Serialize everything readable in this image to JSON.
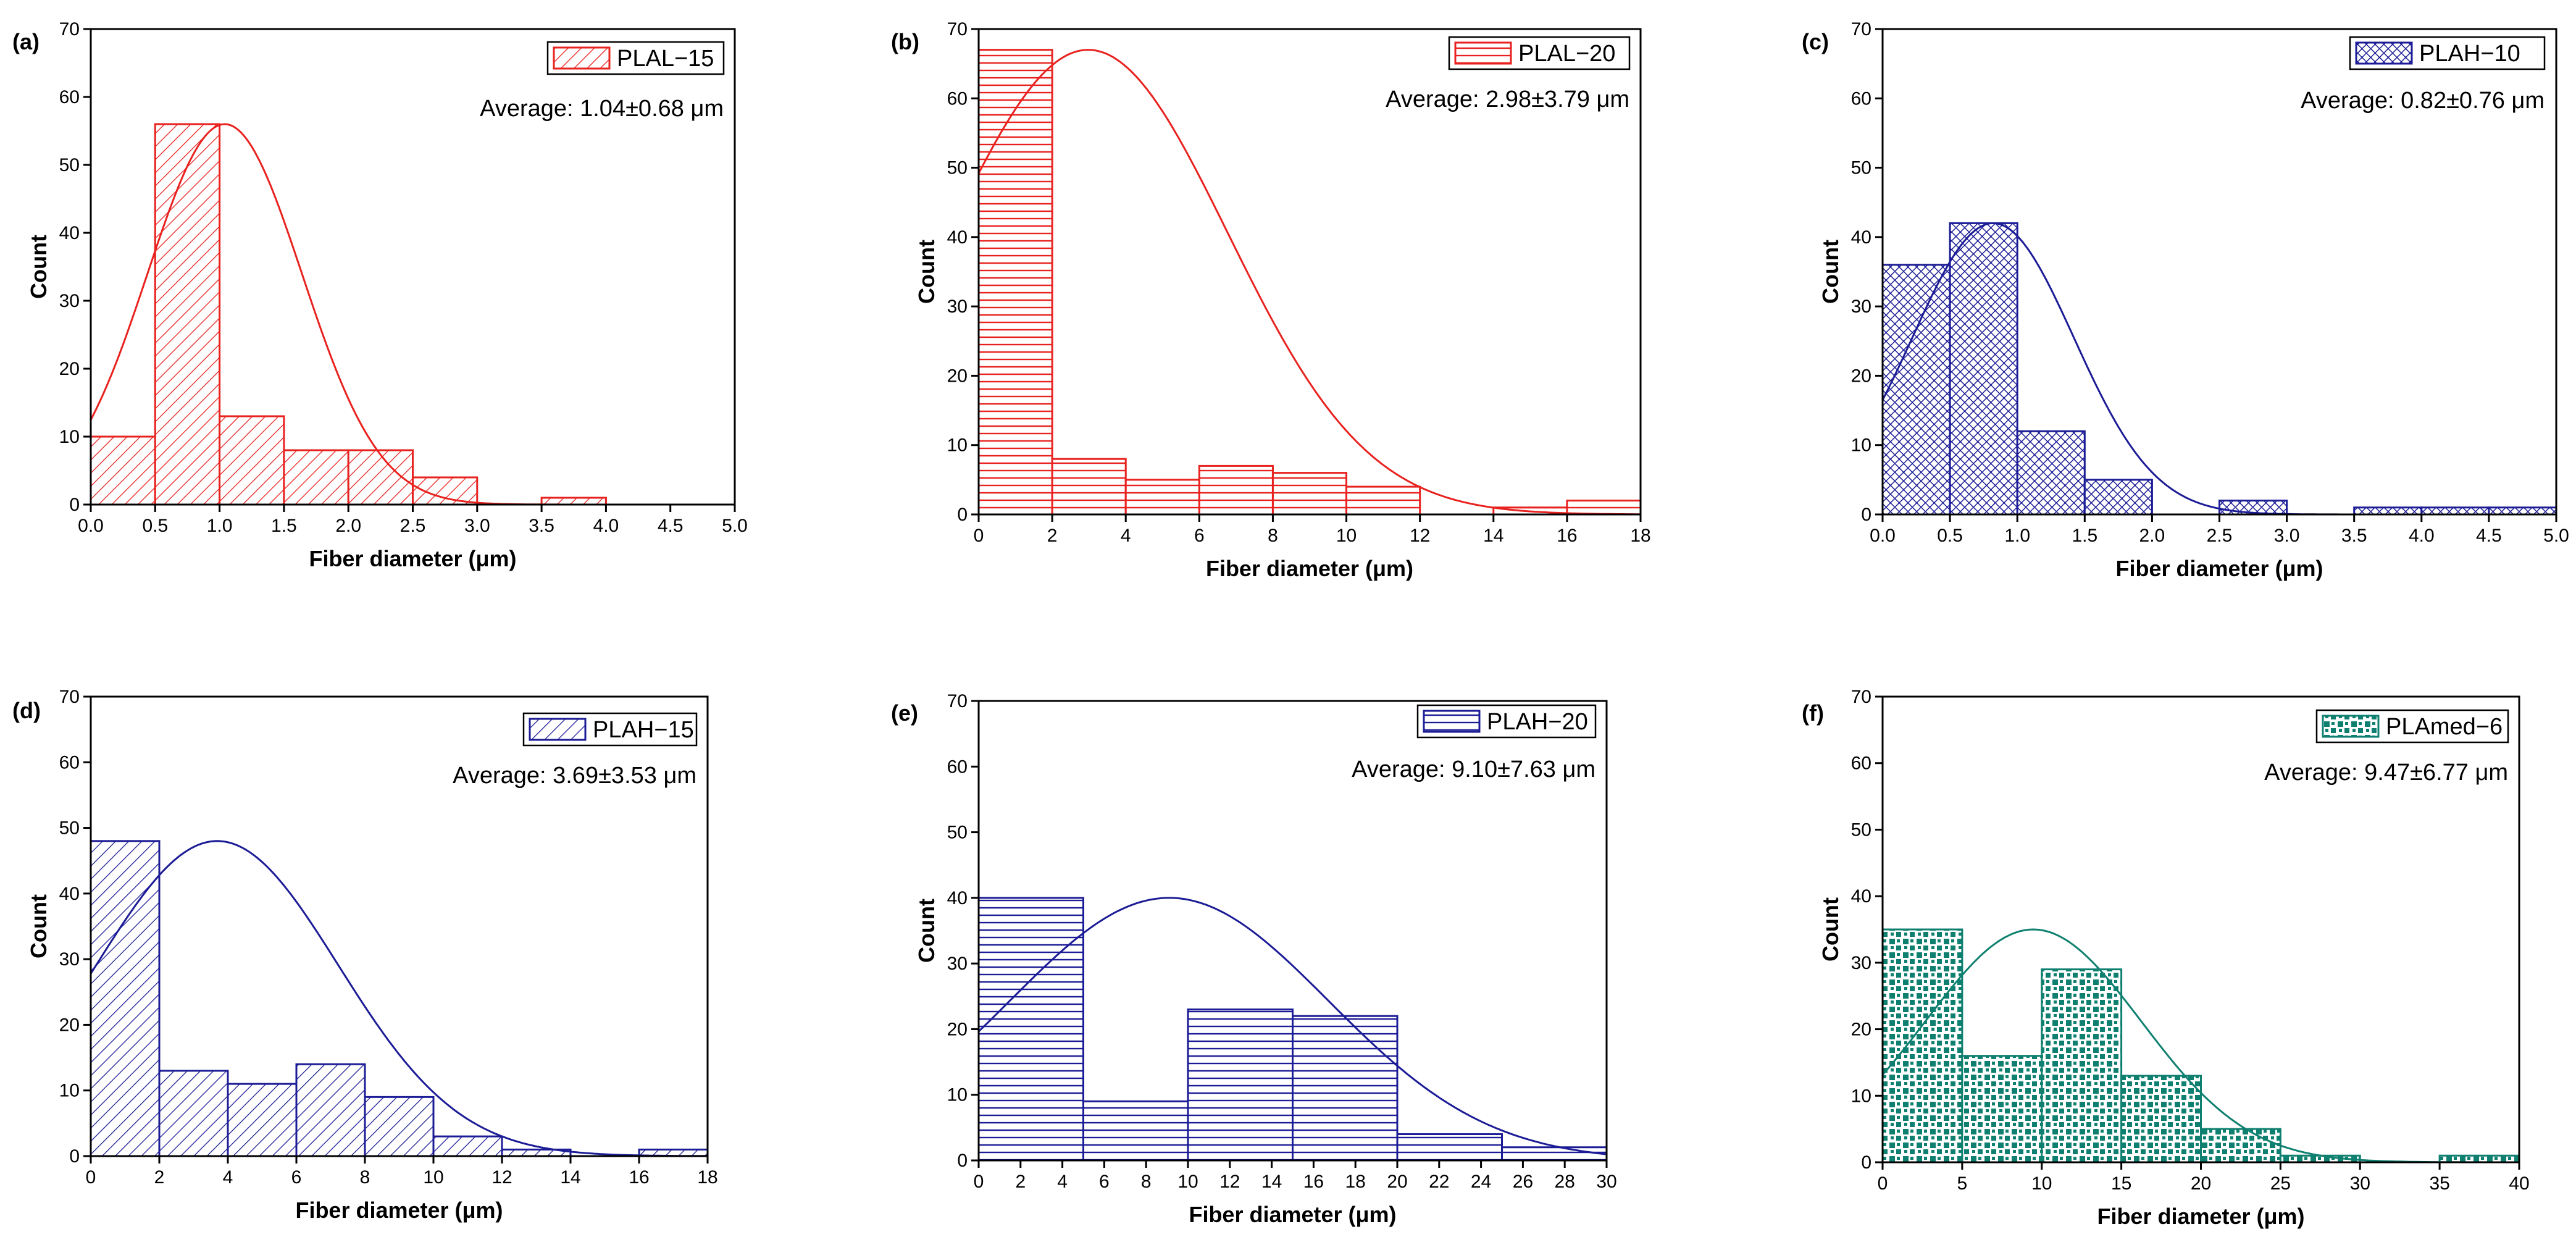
{
  "figure": {
    "description_panels": [
      "(a)",
      "(b)",
      "(c)",
      "(d)",
      "(e)",
      "(f)"
    ]
  },
  "chart_data": [
    {
      "type": "bar",
      "panel_label": "(a)",
      "legend": "PLAL−15",
      "annotation": "Average: 1.04±0.68 μm",
      "xlabel": "Fiber diameter (μm)",
      "ylabel": "Count",
      "xlim": [
        0,
        5
      ],
      "ylim": [
        0,
        70
      ],
      "xticks": [
        "0.0",
        "0.5",
        "1.0",
        "1.5",
        "2.0",
        "2.5",
        "3.0",
        "3.5",
        "4.0",
        "4.5",
        "5.0"
      ],
      "yticks": [
        "0",
        "10",
        "20",
        "30",
        "40",
        "50",
        "60",
        "70"
      ],
      "bin_edges": [
        0,
        0.5,
        1.0,
        1.5,
        2.0,
        2.5,
        3.0,
        3.5,
        4.0
      ],
      "values": [
        10,
        56,
        13,
        8,
        8,
        4,
        0,
        1
      ],
      "fit": {
        "type": "normal",
        "mean": 1.04,
        "peak": 56
      },
      "color": "#e8221f",
      "pattern": "diagonal"
    },
    {
      "type": "bar",
      "panel_label": "(b)",
      "legend": "PLAL−20",
      "annotation": "Average: 2.98±3.79 μm",
      "xlabel": "Fiber diameter (μm)",
      "ylabel": "Count",
      "xlim": [
        0,
        18
      ],
      "ylim": [
        0,
        70
      ],
      "xticks": [
        "0",
        "2",
        "4",
        "6",
        "8",
        "10",
        "12",
        "14",
        "16",
        "18"
      ],
      "yticks": [
        "0",
        "10",
        "20",
        "30",
        "40",
        "50",
        "60",
        "70"
      ],
      "bin_edges": [
        0,
        2,
        4,
        6,
        8,
        10,
        12,
        14,
        16,
        18
      ],
      "values": [
        67,
        8,
        5,
        7,
        6,
        4,
        0,
        1,
        2
      ],
      "fit": {
        "type": "normal",
        "mean": 2.98,
        "sigma": 3.79,
        "peak": 67
      },
      "color": "#e8221f",
      "pattern": "horizontal"
    },
    {
      "type": "bar",
      "panel_label": "(c)",
      "legend": "PLAH−10",
      "annotation": "Average: 0.82±0.76 μm",
      "xlabel": "Fiber diameter (μm)",
      "ylabel": "Count",
      "xlim": [
        0,
        5
      ],
      "ylim": [
        0,
        70
      ],
      "xticks": [
        "0.0",
        "0.5",
        "1.0",
        "1.5",
        "2.0",
        "2.5",
        "3.0",
        "3.5",
        "4.0",
        "4.5",
        "5.0"
      ],
      "yticks": [
        "0",
        "10",
        "20",
        "30",
        "40",
        "50",
        "60",
        "70"
      ],
      "bin_edges": [
        0,
        0.5,
        1.0,
        1.5,
        2.0,
        2.5,
        3.0,
        3.5,
        4.0,
        4.5,
        5.0
      ],
      "values": [
        36,
        42,
        12,
        5,
        0,
        2,
        0,
        1,
        1,
        1
      ],
      "fit": {
        "type": "normal",
        "mean": 0.82,
        "peak": 42
      },
      "color": "#1c1c96",
      "pattern": "crosshatch"
    },
    {
      "type": "bar",
      "panel_label": "(d)",
      "legend": "PLAH−15",
      "annotation": "Average: 3.69±3.53 μm",
      "xlabel": "Fiber diameter (μm)",
      "ylabel": "Count",
      "xlim": [
        0,
        18
      ],
      "ylim": [
        0,
        70
      ],
      "xticks": [
        "0",
        "2",
        "4",
        "6",
        "8",
        "10",
        "12",
        "14",
        "16",
        "18"
      ],
      "yticks": [
        "0",
        "10",
        "20",
        "30",
        "40",
        "50",
        "60",
        "70"
      ],
      "bin_edges": [
        0,
        2,
        4,
        6,
        8,
        10,
        12,
        14,
        16,
        18
      ],
      "values": [
        48,
        13,
        11,
        14,
        9,
        3,
        1,
        0,
        1
      ],
      "fit": {
        "type": "normal",
        "mean": 3.69,
        "sigma": 3.53,
        "peak": 48
      },
      "color": "#1c1c96",
      "pattern": "diagonal"
    },
    {
      "type": "bar",
      "panel_label": "(e)",
      "legend": "PLAH−20",
      "annotation": "Average: 9.10±7.63 μm",
      "xlabel": "Fiber diameter (μm)",
      "ylabel": "Count",
      "xlim": [
        0,
        30
      ],
      "ylim": [
        0,
        70
      ],
      "xticks": [
        "0",
        "2",
        "4",
        "6",
        "8",
        "10",
        "12",
        "14",
        "16",
        "18",
        "20",
        "22",
        "24",
        "26",
        "28",
        "30"
      ],
      "yticks": [
        "0",
        "10",
        "20",
        "30",
        "40",
        "50",
        "60",
        "70"
      ],
      "bin_edges": [
        0,
        5,
        10,
        15,
        20,
        25,
        30
      ],
      "values": [
        40,
        9,
        23,
        22,
        4,
        2
      ],
      "fit": {
        "type": "normal",
        "mean": 9.1,
        "sigma": 7.63,
        "peak": 40
      },
      "color": "#1c1c96",
      "pattern": "horizontal"
    },
    {
      "type": "bar",
      "panel_label": "(f)",
      "legend": "PLAmed−6",
      "annotation": "Average: 9.47±6.77 μm",
      "xlabel": "Fiber diameter (μm)",
      "ylabel": "Count",
      "xlim": [
        0,
        40
      ],
      "ylim": [
        0,
        70
      ],
      "xticks": [
        "0",
        "5",
        "10",
        "15",
        "20",
        "25",
        "30",
        "35",
        "40"
      ],
      "yticks": [
        "0",
        "10",
        "20",
        "30",
        "40",
        "50",
        "60",
        "70"
      ],
      "bin_edges": [
        0,
        5,
        10,
        15,
        20,
        25,
        30,
        35,
        40
      ],
      "values": [
        35,
        16,
        29,
        13,
        5,
        1,
        0,
        1
      ],
      "fit": {
        "type": "normal",
        "mean": 9.47,
        "sigma": 6.77,
        "peak": 35
      },
      "color": "#0f8070",
      "pattern": "dots"
    }
  ]
}
